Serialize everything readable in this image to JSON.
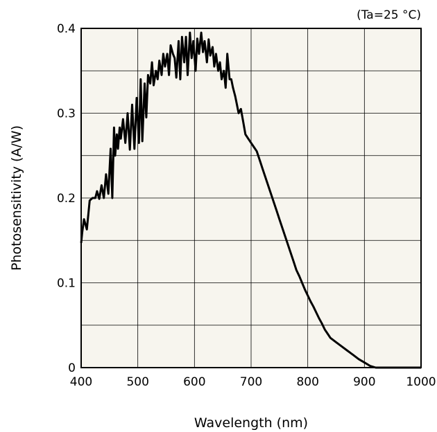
{
  "chart_data": {
    "type": "line",
    "title": "",
    "annotation": "(Ta=25 °C)",
    "xlabel": "Wavelength (nm)",
    "ylabel": "Photosensitivity (A/W)",
    "xlim": [
      400,
      1000
    ],
    "ylim": [
      0,
      0.4
    ],
    "x_ticks": [
      "400",
      "500",
      "600",
      "700",
      "800",
      "900",
      "1000"
    ],
    "y_ticks": [
      "0",
      "0.1",
      "0.2",
      "0.3",
      "0.4"
    ],
    "grid": true,
    "colors": {
      "plot_background": "#f7f5ee",
      "line": "#000000",
      "grid": "#000000"
    },
    "series": [
      {
        "x": [
          400,
          402,
          405,
          410,
          415,
          420,
          425,
          428,
          432,
          436,
          440,
          444,
          448,
          452,
          455,
          458,
          460,
          463,
          465,
          468,
          470,
          474,
          478,
          482,
          486,
          490,
          494,
          498,
          502,
          505,
          508,
          512,
          515,
          518,
          522,
          525,
          528,
          532,
          535,
          538,
          542,
          545,
          548,
          552,
          555,
          558,
          562,
          565,
          568,
          572,
          575,
          578,
          582,
          585,
          588,
          592,
          595,
          598,
          602,
          605,
          608,
          612,
          615,
          618,
          622,
          625,
          628,
          632,
          635,
          638,
          642,
          645,
          648,
          652,
          655,
          658,
          662,
          665,
          668,
          672,
          675,
          678,
          682,
          686,
          690,
          695,
          700,
          705,
          710,
          715,
          720,
          725,
          730,
          735,
          740,
          745,
          750,
          755,
          760,
          765,
          770,
          775,
          780,
          785,
          790,
          795,
          800,
          805,
          810,
          815,
          820,
          825,
          830,
          835,
          840,
          850,
          860,
          870,
          880,
          890,
          900,
          910,
          920,
          930,
          940,
          950,
          955,
          960,
          970,
          980,
          990,
          1000
        ],
        "values": [
          0.147,
          0.16,
          0.175,
          0.163,
          0.197,
          0.2,
          0.2,
          0.208,
          0.199,
          0.215,
          0.2,
          0.228,
          0.205,
          0.258,
          0.2,
          0.283,
          0.25,
          0.275,
          0.258,
          0.283,
          0.27,
          0.293,
          0.265,
          0.3,
          0.257,
          0.31,
          0.258,
          0.318,
          0.265,
          0.34,
          0.267,
          0.335,
          0.295,
          0.345,
          0.335,
          0.36,
          0.333,
          0.35,
          0.34,
          0.362,
          0.345,
          0.37,
          0.355,
          0.37,
          0.345,
          0.38,
          0.37,
          0.365,
          0.342,
          0.385,
          0.34,
          0.39,
          0.36,
          0.39,
          0.345,
          0.395,
          0.365,
          0.385,
          0.35,
          0.388,
          0.37,
          0.395,
          0.372,
          0.385,
          0.36,
          0.387,
          0.368,
          0.378,
          0.355,
          0.37,
          0.35,
          0.36,
          0.34,
          0.35,
          0.33,
          0.37,
          0.34,
          0.34,
          0.33,
          0.32,
          0.31,
          0.3,
          0.305,
          0.29,
          0.275,
          0.27,
          0.265,
          0.26,
          0.255,
          0.245,
          0.235,
          0.225,
          0.215,
          0.205,
          0.195,
          0.185,
          0.175,
          0.165,
          0.155,
          0.145,
          0.135,
          0.125,
          0.115,
          0.108,
          0.1,
          0.092,
          0.085,
          0.078,
          0.072,
          0.065,
          0.058,
          0.052,
          0.045,
          0.04,
          0.035,
          0.03,
          0.025,
          0.02,
          0.015,
          0.01,
          0.006,
          0.002,
          0.0,
          0.0,
          0.0,
          0.0,
          0.0,
          0.0,
          0.0,
          0.0,
          0.0,
          0.0
        ]
      }
    ]
  }
}
